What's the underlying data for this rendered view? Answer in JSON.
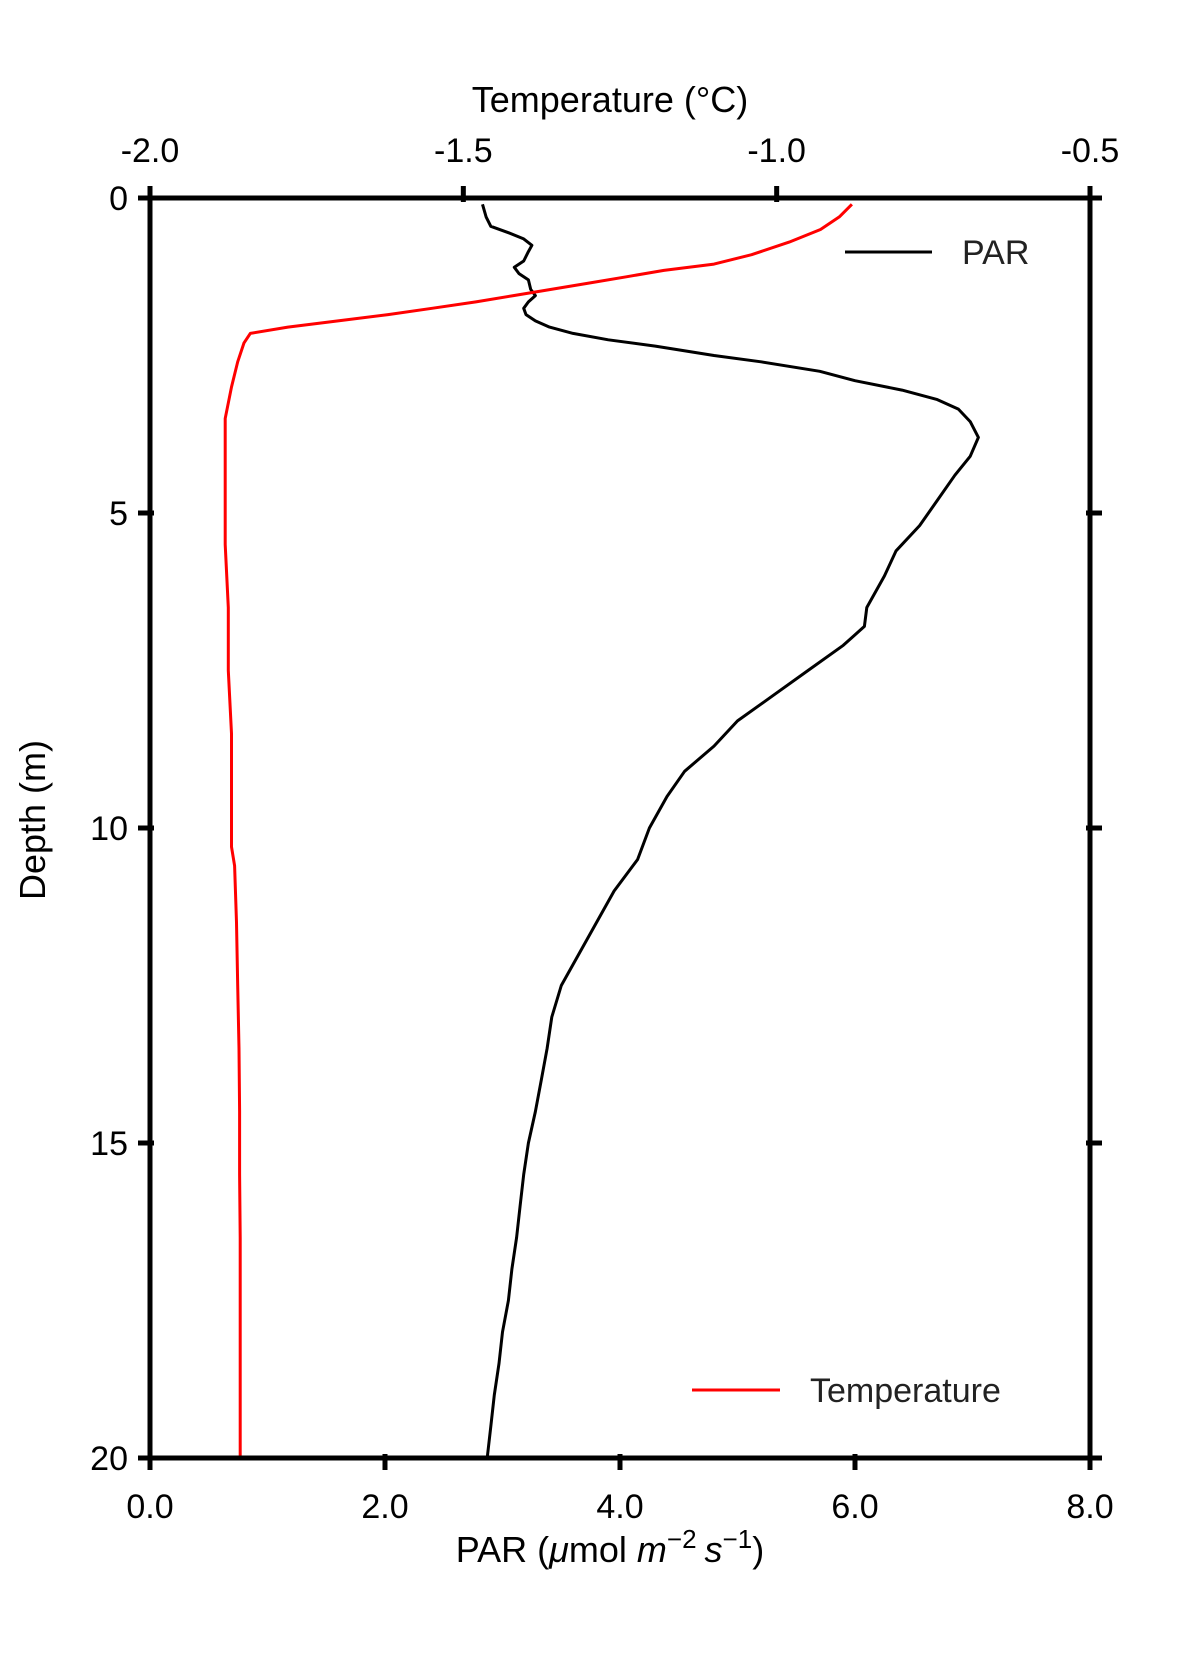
{
  "chart_data": {
    "type": "line",
    "orientation": "vertical-profile",
    "y_axis": {
      "label": "Depth (m)",
      "range": [
        20,
        0
      ],
      "inverted": true,
      "ticks": [
        0,
        5,
        10,
        15,
        20
      ],
      "tick_labels": [
        "0",
        "5",
        "10",
        "15",
        "20"
      ]
    },
    "x_axis_bottom": {
      "label_prefix": "PAR (",
      "label_mu": "μ",
      "label_mol": "mol ",
      "label_m": "m",
      "label_m_exp": "−2",
      "label_s": "s",
      "label_s_exp": "−1",
      "label_suffix": ")",
      "range": [
        0.0,
        8.0
      ],
      "ticks": [
        0.0,
        2.0,
        4.0,
        6.0,
        8.0
      ],
      "tick_labels": [
        "0.0",
        "2.0",
        "4.0",
        "6.0",
        "8.0"
      ]
    },
    "x_axis_top": {
      "label": "Temperature (°C)",
      "range": [
        -2.0,
        -0.5
      ],
      "ticks": [
        -2.0,
        -1.5,
        -1.0,
        -0.5
      ],
      "tick_labels": [
        "-2.0",
        "-1.5",
        "-1.0",
        "-0.5"
      ]
    },
    "legends": {
      "par": {
        "label": "PAR",
        "placement": "top-right"
      },
      "temperature": {
        "label": "Temperature",
        "placement": "bottom-right"
      }
    },
    "grid": false,
    "series": [
      {
        "name": "PAR",
        "axis": "bottom",
        "color": "#000000",
        "points": [
          {
            "depth": 0.1,
            "value": 2.83
          },
          {
            "depth": 0.3,
            "value": 2.86
          },
          {
            "depth": 0.45,
            "value": 2.9
          },
          {
            "depth": 0.55,
            "value": 3.05
          },
          {
            "depth": 0.65,
            "value": 3.18
          },
          {
            "depth": 0.75,
            "value": 3.25
          },
          {
            "depth": 0.85,
            "value": 3.22
          },
          {
            "depth": 1.0,
            "value": 3.18
          },
          {
            "depth": 1.1,
            "value": 3.1
          },
          {
            "depth": 1.2,
            "value": 3.14
          },
          {
            "depth": 1.3,
            "value": 3.22
          },
          {
            "depth": 1.45,
            "value": 3.24
          },
          {
            "depth": 1.55,
            "value": 3.28
          },
          {
            "depth": 1.65,
            "value": 3.22
          },
          {
            "depth": 1.75,
            "value": 3.18
          },
          {
            "depth": 1.85,
            "value": 3.2
          },
          {
            "depth": 1.95,
            "value": 3.28
          },
          {
            "depth": 2.05,
            "value": 3.4
          },
          {
            "depth": 2.15,
            "value": 3.6
          },
          {
            "depth": 2.25,
            "value": 3.9
          },
          {
            "depth": 2.35,
            "value": 4.3
          },
          {
            "depth": 2.5,
            "value": 4.8
          },
          {
            "depth": 2.6,
            "value": 5.2
          },
          {
            "depth": 2.75,
            "value": 5.7
          },
          {
            "depth": 2.9,
            "value": 6.0
          },
          {
            "depth": 3.05,
            "value": 6.4
          },
          {
            "depth": 3.2,
            "value": 6.7
          },
          {
            "depth": 3.35,
            "value": 6.88
          },
          {
            "depth": 3.55,
            "value": 6.98
          },
          {
            "depth": 3.8,
            "value": 7.05
          },
          {
            "depth": 4.1,
            "value": 6.98
          },
          {
            "depth": 4.4,
            "value": 6.85
          },
          {
            "depth": 4.8,
            "value": 6.7
          },
          {
            "depth": 5.2,
            "value": 6.55
          },
          {
            "depth": 5.6,
            "value": 6.35
          },
          {
            "depth": 6.0,
            "value": 6.25
          },
          {
            "depth": 6.5,
            "value": 6.1
          },
          {
            "depth": 6.8,
            "value": 6.08
          },
          {
            "depth": 7.1,
            "value": 5.9
          },
          {
            "depth": 7.5,
            "value": 5.6
          },
          {
            "depth": 7.9,
            "value": 5.3
          },
          {
            "depth": 8.3,
            "value": 5.0
          },
          {
            "depth": 8.7,
            "value": 4.8
          },
          {
            "depth": 9.1,
            "value": 4.55
          },
          {
            "depth": 9.5,
            "value": 4.4
          },
          {
            "depth": 10.0,
            "value": 4.25
          },
          {
            "depth": 10.5,
            "value": 4.15
          },
          {
            "depth": 11.0,
            "value": 3.95
          },
          {
            "depth": 11.5,
            "value": 3.8
          },
          {
            "depth": 12.0,
            "value": 3.65
          },
          {
            "depth": 12.5,
            "value": 3.5
          },
          {
            "depth": 13.0,
            "value": 3.42
          },
          {
            "depth": 13.5,
            "value": 3.38
          },
          {
            "depth": 14.0,
            "value": 3.33
          },
          {
            "depth": 14.5,
            "value": 3.28
          },
          {
            "depth": 15.0,
            "value": 3.22
          },
          {
            "depth": 15.5,
            "value": 3.18
          },
          {
            "depth": 16.0,
            "value": 3.15
          },
          {
            "depth": 16.5,
            "value": 3.12
          },
          {
            "depth": 17.0,
            "value": 3.08
          },
          {
            "depth": 17.5,
            "value": 3.05
          },
          {
            "depth": 18.0,
            "value": 3.0
          },
          {
            "depth": 18.5,
            "value": 2.97
          },
          {
            "depth": 19.0,
            "value": 2.93
          },
          {
            "depth": 19.5,
            "value": 2.9
          },
          {
            "depth": 20.0,
            "value": 2.87
          }
        ]
      },
      {
        "name": "Temperature",
        "axis": "top",
        "color": "#ff0000",
        "points": [
          {
            "depth": 0.1,
            "value": -0.88
          },
          {
            "depth": 0.3,
            "value": -0.9
          },
          {
            "depth": 0.5,
            "value": -0.93
          },
          {
            "depth": 0.7,
            "value": -0.98
          },
          {
            "depth": 0.9,
            "value": -1.04
          },
          {
            "depth": 1.05,
            "value": -1.1
          },
          {
            "depth": 1.15,
            "value": -1.18
          },
          {
            "depth": 1.25,
            "value": -1.24
          },
          {
            "depth": 1.35,
            "value": -1.3
          },
          {
            "depth": 1.45,
            "value": -1.36
          },
          {
            "depth": 1.55,
            "value": -1.42
          },
          {
            "depth": 1.65,
            "value": -1.48
          },
          {
            "depth": 1.75,
            "value": -1.55
          },
          {
            "depth": 1.85,
            "value": -1.62
          },
          {
            "depth": 1.95,
            "value": -1.7
          },
          {
            "depth": 2.05,
            "value": -1.78
          },
          {
            "depth": 2.15,
            "value": -1.84
          },
          {
            "depth": 2.3,
            "value": -1.85
          },
          {
            "depth": 2.6,
            "value": -1.86
          },
          {
            "depth": 3.0,
            "value": -1.87
          },
          {
            "depth": 3.5,
            "value": -1.88
          },
          {
            "depth": 4.5,
            "value": -1.88
          },
          {
            "depth": 5.5,
            "value": -1.88
          },
          {
            "depth": 6.5,
            "value": -1.875
          },
          {
            "depth": 7.5,
            "value": -1.875
          },
          {
            "depth": 8.5,
            "value": -1.87
          },
          {
            "depth": 9.5,
            "value": -1.87
          },
          {
            "depth": 10.3,
            "value": -1.87
          },
          {
            "depth": 10.6,
            "value": -1.865
          },
          {
            "depth": 11.5,
            "value": -1.862
          },
          {
            "depth": 12.5,
            "value": -1.86
          },
          {
            "depth": 13.5,
            "value": -1.858
          },
          {
            "depth": 14.5,
            "value": -1.857
          },
          {
            "depth": 15.5,
            "value": -1.857
          },
          {
            "depth": 16.5,
            "value": -1.856
          },
          {
            "depth": 17.5,
            "value": -1.856
          },
          {
            "depth": 18.5,
            "value": -1.856
          },
          {
            "depth": 19.5,
            "value": -1.856
          },
          {
            "depth": 20.0,
            "value": -1.856
          }
        ]
      }
    ]
  }
}
